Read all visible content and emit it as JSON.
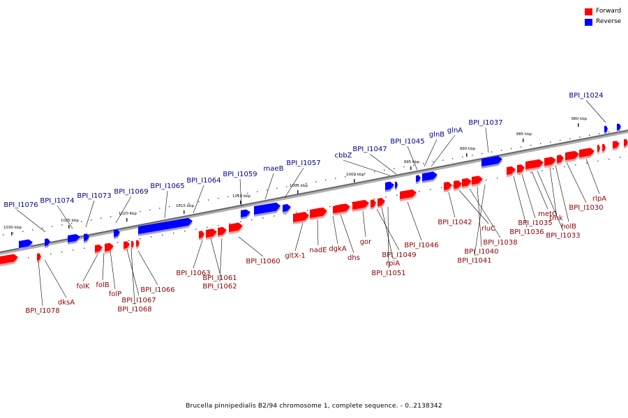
{
  "colors": {
    "forward": "#ff0000",
    "reverse": "#0000ff",
    "backbone": "#888888"
  },
  "legend": {
    "forward": "Forward",
    "reverse": "Reverse"
  },
  "caption": "Brucella pinnipedialis B2/94 chromosome 1, complete sequence. - 0..2138342",
  "ticks": [
    "1030 kbp",
    "1025 kbp",
    "1020 kbp",
    "1015 kbp",
    "1010 kbp",
    "1005 kbp",
    "1000 kbp",
    "995 kbp",
    "990 kbp",
    "985 kbp",
    "980 kbp"
  ],
  "reverse_genes": [
    "BPI_I1076",
    "BPI_I1074",
    "BPI_I1073",
    "BPI_I1069",
    "BPI_I1065",
    "BPI_I1064",
    "BPI_I1059",
    "maeB",
    "BPI_I1057",
    "cbbZ",
    "BPI_I1047",
    "BPI_I1045",
    "glnB",
    "glnA",
    "BPI_I1037",
    "BPI_I1024"
  ],
  "forward_genes": [
    "BPI_I1078",
    "dksA",
    "folK",
    "folB",
    "folP",
    "BPI_I1067",
    "BPI_I1068",
    "BPI_I1066",
    "BPI_I1063",
    "BPI_I1061",
    "BPI_I1062",
    "BPI_I1060",
    "gltX-1",
    "nadE",
    "dgkA",
    "dhs",
    "gor",
    "BPI_I1049",
    "rpiA",
    "BPI_I1051",
    "BPI_I1046",
    "BPI_I1042",
    "rluC",
    "BPI_I1038",
    "BPI_I1040",
    "BPI_I1041",
    "BPI_I1036",
    "BPI_I1035",
    "metG",
    "tmk",
    "holB",
    "BPI_I1033",
    "BPI_I1030",
    "rlpA"
  ]
}
